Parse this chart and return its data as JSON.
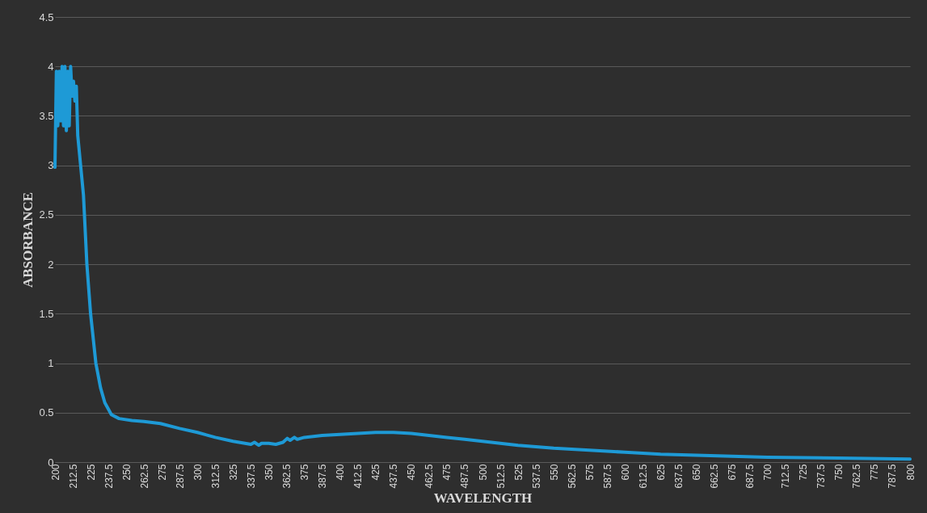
{
  "chart_data": {
    "type": "line",
    "xlabel": "WAVELENGTH",
    "ylabel": "ABSORBANCE",
    "x": [
      200,
      201,
      202,
      203,
      204,
      205,
      206,
      207,
      208,
      209,
      210,
      211,
      212,
      213,
      214,
      215,
      216,
      218,
      220,
      222.4,
      225,
      228.7,
      232,
      235,
      239.6,
      245,
      254,
      262.5,
      274,
      287.5,
      300,
      312.5,
      325,
      337.5,
      340,
      343,
      345,
      350,
      355,
      360,
      363,
      365,
      368,
      370,
      375,
      387.5,
      400,
      412.5,
      425,
      437.5,
      450,
      462.5,
      475,
      487.5,
      500,
      525,
      550,
      575,
      600,
      625,
      650,
      675,
      700,
      750,
      800
    ],
    "series": [
      {
        "color": "#1e9ad6",
        "values": [
          2.98,
          3.95,
          3.4,
          3.95,
          3.45,
          4.0,
          3.4,
          4.0,
          3.35,
          3.95,
          3.4,
          4.0,
          3.7,
          3.85,
          3.65,
          3.8,
          3.3,
          3.0,
          2.7,
          2.0,
          1.5,
          1.0,
          0.75,
          0.6,
          0.48,
          0.44,
          0.42,
          0.41,
          0.39,
          0.34,
          0.3,
          0.25,
          0.21,
          0.18,
          0.2,
          0.17,
          0.19,
          0.19,
          0.18,
          0.2,
          0.24,
          0.22,
          0.25,
          0.23,
          0.25,
          0.27,
          0.28,
          0.29,
          0.3,
          0.3,
          0.29,
          0.27,
          0.25,
          0.23,
          0.21,
          0.17,
          0.14,
          0.12,
          0.1,
          0.08,
          0.07,
          0.06,
          0.05,
          0.04,
          0.03
        ]
      }
    ],
    "xlim": [
      200,
      800
    ],
    "xticks": [
      200,
      212.5,
      225,
      237.5,
      250,
      262.5,
      275,
      287.5,
      300,
      312.5,
      325,
      337.5,
      350,
      362.5,
      375,
      387.5,
      400,
      412.5,
      425,
      437.5,
      450,
      462.5,
      475,
      487.5,
      500,
      512.5,
      525,
      537.5,
      550,
      562.5,
      575,
      587.5,
      600,
      612.5,
      625,
      637.5,
      650,
      662.5,
      675,
      687.5,
      700,
      712.5,
      725,
      737.5,
      750,
      762.5,
      775,
      787.5,
      800
    ],
    "ylim": [
      0,
      4.5
    ],
    "yticks": [
      0,
      0.5,
      1,
      1.5,
      2,
      2.5,
      3,
      3.5,
      4,
      4.5
    ],
    "grid": "y",
    "legend": false,
    "marker": "none",
    "line_style": "solid"
  }
}
